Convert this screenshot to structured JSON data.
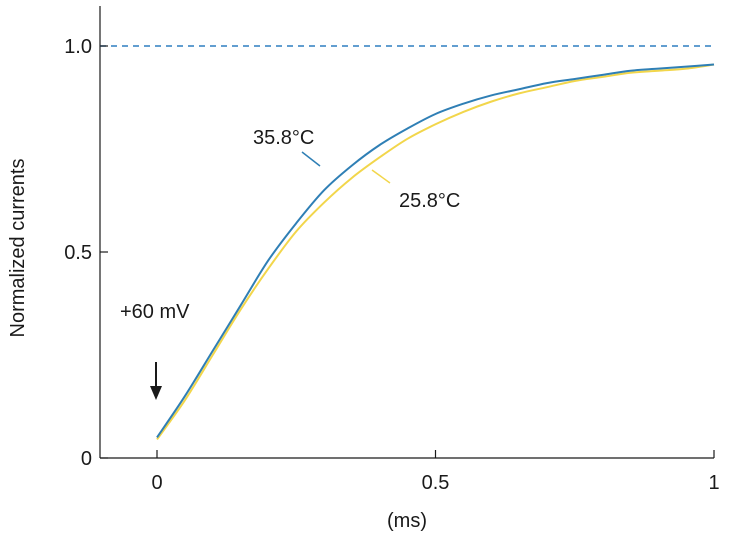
{
  "chart_data": {
    "type": "line",
    "xlabel": "(ms)",
    "ylabel": "Normalized currents",
    "xlim": [
      -0.1,
      1.0
    ],
    "ylim": [
      0,
      1.1
    ],
    "x_ticks": [
      {
        "value": 0,
        "label": "0"
      },
      {
        "value": 0.5,
        "label": "0.5"
      },
      {
        "value": 1,
        "label": "1"
      }
    ],
    "y_ticks": [
      {
        "value": 0,
        "label": "0"
      },
      {
        "value": 0.5,
        "label": "0.5"
      },
      {
        "value": 1.0,
        "label": "1.0"
      }
    ],
    "grid": false,
    "reference_line": {
      "y": 1.0,
      "style": "dashed",
      "color": "#2f7fc1"
    },
    "series": [
      {
        "name": "35.8°C",
        "color": "#2f7fb5",
        "x": [
          0,
          0.05,
          0.1,
          0.15,
          0.2,
          0.25,
          0.3,
          0.35,
          0.4,
          0.45,
          0.5,
          0.55,
          0.6,
          0.65,
          0.7,
          0.75,
          0.8,
          0.85,
          0.9,
          0.95,
          1.0
        ],
        "y": [
          0.05,
          0.15,
          0.26,
          0.37,
          0.48,
          0.57,
          0.65,
          0.71,
          0.76,
          0.8,
          0.835,
          0.86,
          0.88,
          0.895,
          0.91,
          0.92,
          0.93,
          0.94,
          0.945,
          0.95,
          0.955
        ]
      },
      {
        "name": "25.8°C",
        "color": "#f2d64b",
        "x": [
          0,
          0.05,
          0.1,
          0.15,
          0.2,
          0.25,
          0.3,
          0.35,
          0.4,
          0.45,
          0.5,
          0.55,
          0.6,
          0.65,
          0.7,
          0.75,
          0.8,
          0.85,
          0.9,
          0.95,
          1.0
        ],
        "y": [
          0.045,
          0.14,
          0.25,
          0.36,
          0.46,
          0.55,
          0.62,
          0.68,
          0.73,
          0.775,
          0.81,
          0.84,
          0.865,
          0.885,
          0.9,
          0.915,
          0.925,
          0.935,
          0.94,
          0.945,
          0.955
        ]
      }
    ],
    "annotations": [
      {
        "text": "+60 mV",
        "x": 0,
        "y": 0.365
      },
      {
        "text": "35.8°C",
        "x": 0.26,
        "y": 0.78,
        "series": 0
      },
      {
        "text": "25.8°C",
        "x": 0.45,
        "y": 0.63,
        "series": 1
      }
    ]
  }
}
